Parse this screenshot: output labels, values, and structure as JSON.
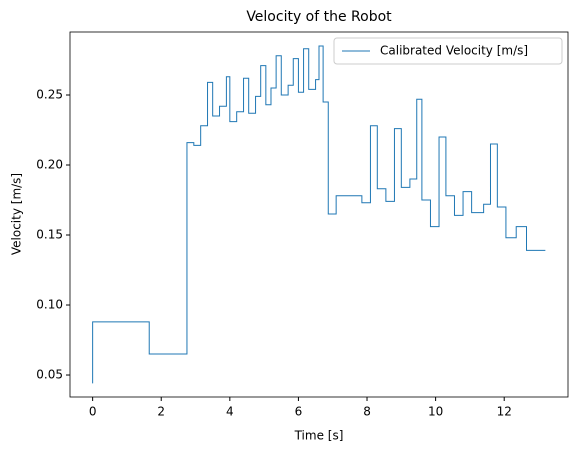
{
  "chart_data": {
    "type": "step",
    "title": "Velocity of the Robot",
    "xlabel": "Time [s]",
    "ylabel": "Velocity [m/s]",
    "x": [
      0,
      1.65,
      2.75,
      2.95,
      3.15,
      3.35,
      3.5,
      3.7,
      3.9,
      4.0,
      4.2,
      4.4,
      4.55,
      4.75,
      4.9,
      5.05,
      5.2,
      5.35,
      5.5,
      5.7,
      5.85,
      6.0,
      6.15,
      6.3,
      6.5,
      6.6,
      6.72,
      6.87,
      7.1,
      7.85,
      8.1,
      8.3,
      8.55,
      8.8,
      9.0,
      9.25,
      9.45,
      9.6,
      9.85,
      10.1,
      10.3,
      10.55,
      10.8,
      11.05,
      11.4,
      11.6,
      11.8,
      12.05,
      12.35,
      12.65,
      13.0,
      13.2
    ],
    "series": [
      {
        "name": "Calibrated Velocity [m/s]",
        "color": "#1f77b4",
        "values": [
          0.044,
          0.088,
          0.065,
          0.216,
          0.214,
          0.228,
          0.259,
          0.235,
          0.242,
          0.263,
          0.231,
          0.238,
          0.262,
          0.237,
          0.249,
          0.271,
          0.243,
          0.255,
          0.278,
          0.25,
          0.257,
          0.276,
          0.252,
          0.283,
          0.254,
          0.261,
          0.285,
          0.245,
          0.165,
          0.178,
          0.173,
          0.228,
          0.183,
          0.174,
          0.226,
          0.184,
          0.19,
          0.247,
          0.175,
          0.156,
          0.22,
          0.178,
          0.164,
          0.181,
          0.166,
          0.172,
          0.215,
          0.17,
          0.148,
          0.156,
          0.139,
          0.139
        ]
      }
    ],
    "xlim": [
      -0.66,
      13.86
    ],
    "xticks": [
      0,
      2,
      4,
      6,
      8,
      10,
      12
    ],
    "ylim": [
      0.0343,
      0.295
    ],
    "yticks": [
      0.05,
      {
        "value": 0.1,
        "label": "0.10"
      },
      0.15,
      {
        "value": 0.2,
        "label": "0.20"
      },
      0.25
    ],
    "legend": "upper right",
    "grid": false
  }
}
